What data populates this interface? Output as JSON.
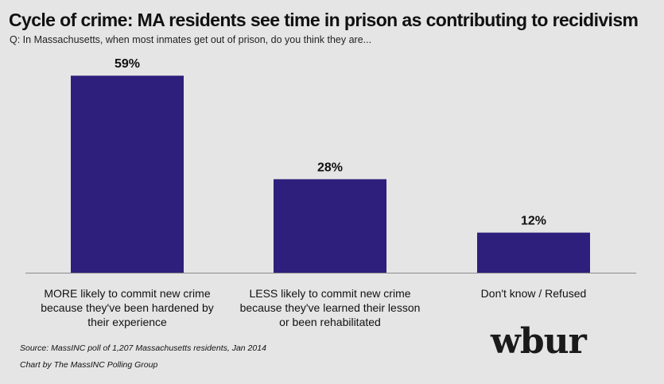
{
  "header": {
    "title": "Cycle of crime: MA residents see time in prison as contributing to recidivism",
    "question": "Q: In Massachusetts, when most inmates get out of prison, do you think they are..."
  },
  "chart_data": {
    "type": "bar",
    "title": "Cycle of crime: MA residents see time in prison as contributing to recidivism",
    "subtitle": "Q: In Massachusetts, when most inmates get out of prison, do you think they are...",
    "categories": [
      [
        "MORE likely to commit new crime",
        "because they've been hardened by",
        "their experience"
      ],
      [
        "LESS likely to commit new crime",
        "because they've learned their lesson",
        "or been rehabilitated"
      ],
      [
        "Don't know / Refused"
      ]
    ],
    "values": [
      59,
      28,
      12
    ],
    "value_labels": [
      "59%",
      "28%",
      "12%"
    ],
    "ylim": [
      0,
      65
    ],
    "xlabel": "",
    "ylabel": "",
    "grid": false,
    "bar_color": "#2e1f7c"
  },
  "footer": {
    "source": "Source: MassINC poll of 1,207 Massachusetts residents, Jan 2014",
    "credit": "Chart by The MassINC Polling Group",
    "logo_text": "wbur"
  }
}
